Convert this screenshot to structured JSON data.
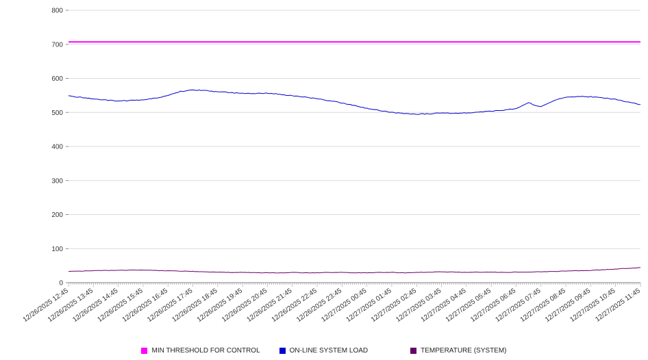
{
  "chart_data": {
    "type": "line",
    "title": "",
    "xlabel": "",
    "ylabel": "",
    "ylim": [
      0,
      800
    ],
    "y_ticks": [
      0,
      100,
      200,
      300,
      400,
      500,
      600,
      700,
      800
    ],
    "grid": true,
    "legend_position": "bottom",
    "total_minutes": 1380,
    "sample_minutes": 5,
    "x_tick_labels": [
      "12/26/2025 12:45",
      "12/26/2025 13:45",
      "12/26/2025 14:45",
      "12/26/2025 15:45",
      "12/26/2025 16:45",
      "12/26/2025 17:45",
      "12/26/2025 18:45",
      "12/26/2025 19:45",
      "12/26/2025 20:45",
      "12/26/2025 21:45",
      "12/26/2025 22:45",
      "12/26/2025 23:45",
      "12/27/2025 00:45",
      "12/27/2025 01:45",
      "12/27/2025 02:45",
      "12/27/2025 03:45",
      "12/27/2025 04:45",
      "12/27/2025 05:45",
      "12/27/2025 06:45",
      "12/27/2025 07:45",
      "12/27/2025 08:45",
      "12/27/2025 09:45",
      "12/27/2025 10:45",
      "12/27/2025 11:45"
    ],
    "series": [
      {
        "name": "MIN THRESHOLD FOR CONTROL",
        "color": "#ff00ff",
        "width": 2,
        "noise": 0,
        "values": [
          707,
          707
        ]
      },
      {
        "name": "ON-LINE SYSTEM LOAD",
        "color": "#0000cc",
        "width": 1,
        "noise": 1.2,
        "values": [
          548,
          544,
          540,
          536,
          534,
          535,
          537,
          542,
          549,
          562,
          566,
          564,
          561,
          558,
          556,
          555,
          557,
          553,
          549,
          545,
          540,
          534,
          528,
          520,
          512,
          506,
          500,
          497,
          495,
          496,
          498,
          497,
          499,
          501,
          504,
          507,
          511,
          528,
          516,
          535,
          544,
          547,
          546,
          543,
          538,
          530,
          523
        ]
      },
      {
        "name": "TEMPERATURE (SYSTEM)",
        "color": "#660066",
        "width": 1,
        "noise": 0.6,
        "values": [
          33,
          34,
          35,
          36,
          36,
          37,
          37,
          36,
          35,
          34,
          33,
          32,
          31,
          30,
          30,
          29,
          29,
          29,
          30,
          29,
          29,
          30,
          30,
          29,
          29,
          30,
          30,
          29,
          30,
          31,
          32,
          31,
          30,
          31,
          31,
          30,
          31,
          31,
          32,
          33,
          34,
          35,
          36,
          38,
          40,
          42,
          44
        ]
      }
    ]
  },
  "legend": {
    "items": [
      {
        "label": "MIN THRESHOLD FOR CONTROL"
      },
      {
        "label": "ON-LINE SYSTEM LOAD"
      },
      {
        "label": "TEMPERATURE (SYSTEM)"
      }
    ]
  }
}
